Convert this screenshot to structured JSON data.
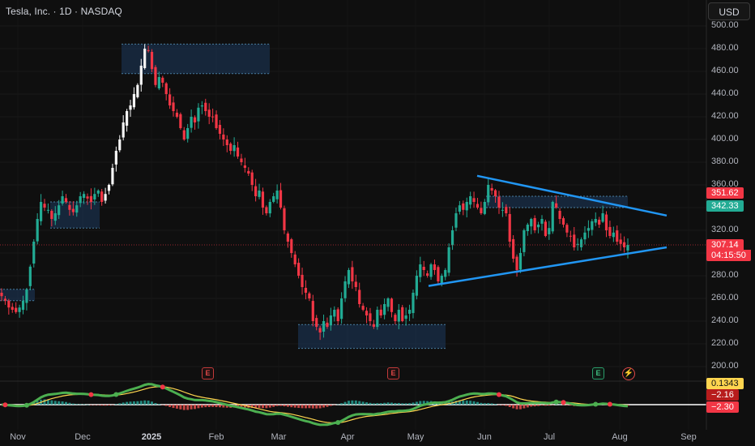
{
  "header": {
    "title": "Tesla, Inc. · 1D · NASDAQ",
    "currency": "USD"
  },
  "price_axis": {
    "ticks": [
      "500.00",
      "480.00",
      "460.00",
      "440.00",
      "420.00",
      "400.00",
      "380.00",
      "360.00",
      "340.00",
      "320.00",
      "300.00",
      "280.00",
      "260.00",
      "240.00",
      "220.00",
      "200.00"
    ]
  },
  "time_axis": {
    "ticks": [
      "Nov",
      "Dec",
      "2025",
      "Feb",
      "Mar",
      "Apr",
      "May",
      "Jun",
      "Jul",
      "Aug",
      "Sep"
    ]
  },
  "price_badges": {
    "red_level": "351.62",
    "green_level": "342.33",
    "last_price": "307.14",
    "countdown": "04:15:50"
  },
  "indicator_badges": {
    "value_1": "0.1343",
    "value_2": "−2.16",
    "value_3": "−2.30"
  },
  "events": {
    "earnings_label": "E",
    "bolt_label": "⚡"
  },
  "colors": {
    "up": "#22ab94",
    "down": "#f23645",
    "trendline": "#2196f3",
    "zone": "#1e3a5f",
    "macd_line": "#4caf50",
    "signal_line": "#ffd54f"
  },
  "chart_data": {
    "type": "candlestick",
    "title": "Tesla, Inc. · 1D · NASDAQ",
    "ylim": [
      195,
      505
    ],
    "y_ticks": [
      200,
      220,
      240,
      260,
      280,
      300,
      320,
      340,
      360,
      380,
      400,
      420,
      440,
      460,
      480,
      500
    ],
    "x_labels": [
      "Nov",
      "Dec",
      "2025",
      "Feb",
      "Mar",
      "Apr",
      "May",
      "Jun",
      "Jul",
      "Aug",
      "Sep"
    ],
    "approx_daily_closes": [
      262,
      258,
      252,
      250,
      248,
      252,
      258,
      268,
      288,
      310,
      330,
      345,
      340,
      338,
      330,
      335,
      342,
      350,
      345,
      338,
      336,
      342,
      350,
      352,
      348,
      345,
      352,
      355,
      345,
      352,
      360,
      375,
      390,
      400,
      415,
      425,
      430,
      440,
      448,
      465,
      480,
      478,
      462,
      448,
      455,
      450,
      440,
      430,
      425,
      420,
      410,
      400,
      410,
      420,
      415,
      428,
      430,
      425,
      420,
      420,
      410,
      405,
      400,
      395,
      390,
      395,
      385,
      380,
      375,
      370,
      360,
      350,
      355,
      340,
      335,
      345,
      350,
      355,
      340,
      320,
      310,
      300,
      290,
      280,
      270,
      265,
      260,
      240,
      235,
      230,
      240,
      235,
      245,
      250,
      240,
      260,
      275,
      285,
      275,
      270,
      255,
      250,
      245,
      240,
      235,
      250,
      245,
      255,
      260,
      248,
      240,
      250,
      240,
      245,
      250,
      265,
      280,
      290,
      285,
      280,
      290,
      285,
      275,
      280,
      285,
      305,
      320,
      335,
      342,
      338,
      345,
      350,
      345,
      340,
      335,
      345,
      360,
      355,
      350,
      340,
      338,
      335,
      310,
      295,
      285,
      300,
      320,
      325,
      330,
      320,
      325,
      330,
      315,
      322,
      345,
      340,
      330,
      325,
      318,
      315,
      305,
      308,
      312,
      318,
      322,
      328,
      330,
      325,
      335,
      320,
      315,
      318,
      310,
      308,
      305,
      307.14
    ],
    "zones": [
      {
        "low": 458,
        "high": 484
      },
      {
        "low": 322,
        "high": 345
      },
      {
        "low": 258,
        "high": 268
      },
      {
        "low": 216,
        "high": 237
      },
      {
        "low": 340,
        "high": 350
      }
    ],
    "trendlines": [
      {
        "name": "upper",
        "from": {
          "date": "May 28",
          "price": 368
        },
        "to": {
          "date": "Aug 20",
          "price": 333
        }
      },
      {
        "name": "lower",
        "from": {
          "date": "May 12",
          "price": 271
        },
        "to": {
          "date": "Aug 20",
          "price": 305
        }
      }
    ],
    "levels": {
      "last": 307.14,
      "red_level": 351.62,
      "green_level": 342.33
    },
    "indicator": {
      "values": [
        0.1343,
        -2.16,
        -2.3
      ]
    }
  }
}
